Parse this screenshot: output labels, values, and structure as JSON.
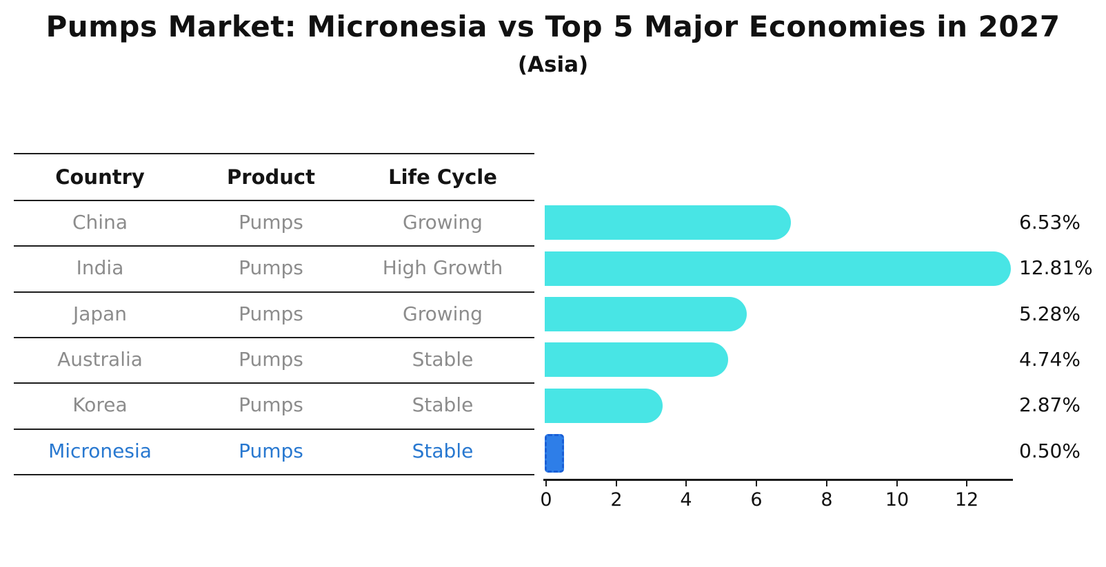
{
  "chart": {
    "title": "Pumps Market: Micronesia vs Top 5 Major Economies in 2027",
    "subtitle": "(Asia)"
  },
  "table": {
    "columns": [
      "Country",
      "Product",
      "Life Cycle"
    ],
    "rows": [
      {
        "country": "China",
        "product": "Pumps",
        "life_cycle": "Growing",
        "highlight": false
      },
      {
        "country": "India",
        "product": "Pumps",
        "life_cycle": "High Growth",
        "highlight": false
      },
      {
        "country": "Japan",
        "product": "Pumps",
        "life_cycle": "Growing",
        "highlight": false
      },
      {
        "country": "Australia",
        "product": "Pumps",
        "life_cycle": "Stable",
        "highlight": false
      },
      {
        "country": "Korea",
        "product": "Pumps",
        "life_cycle": "Stable",
        "highlight": true
      }
    ]
  },
  "chart_data": {
    "type": "bar",
    "orientation": "horizontal",
    "title": "Pumps Market: Micronesia vs Top 5 Major Economies in 2027",
    "subtitle": "(Asia)",
    "categories": [
      "China",
      "India",
      "Japan",
      "Australia",
      "Korea",
      "Micronesia"
    ],
    "values": [
      6.53,
      12.81,
      5.28,
      4.74,
      2.87,
      0.5
    ],
    "labels": [
      "6.53%",
      "12.81%",
      "5.28%",
      "4.74%",
      "2.87%",
      "0.50%"
    ],
    "x_ticks": [
      0,
      2,
      4,
      6,
      8,
      10,
      12
    ],
    "xlim": [
      0,
      13.4
    ],
    "grid": false,
    "legend": "none",
    "highlight_index": 5,
    "bar_color": "#48e5e5",
    "highlight_bar_color": "#2e7ee8",
    "highlight_text_color": "#2878d0",
    "text_color": "#8c8c8c"
  }
}
